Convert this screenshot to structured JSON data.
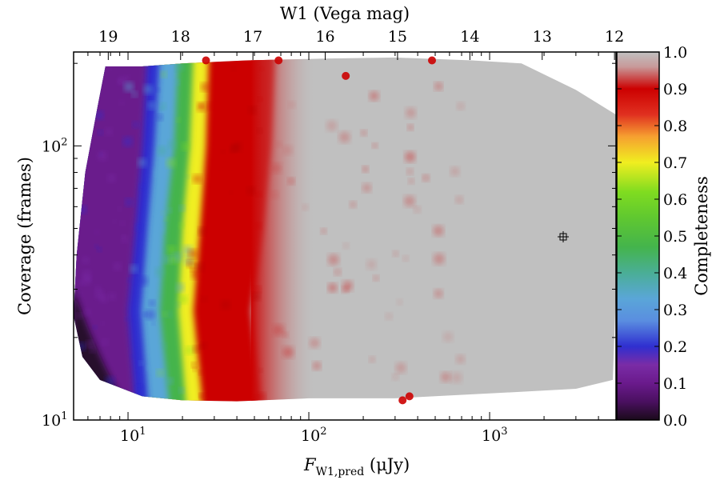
{
  "chart_data": {
    "type": "heatmap",
    "title": "",
    "x_axis": {
      "label_main": "F",
      "label_sub": "W1,pred",
      "label_unit": " (μJy)",
      "scale": "log",
      "range": [
        5,
        5000
      ],
      "major_ticks": [
        {
          "value": 10,
          "base": "10",
          "exp": "1"
        },
        {
          "value": 100,
          "base": "10",
          "exp": "2"
        },
        {
          "value": 1000,
          "base": "10",
          "exp": "3"
        }
      ]
    },
    "top_axis": {
      "label": "W1 (Vega mag)",
      "ticks": [
        {
          "value": 19,
          "label": "19"
        },
        {
          "value": 18,
          "label": "18"
        },
        {
          "value": 17,
          "label": "17"
        },
        {
          "value": 16,
          "label": "16"
        },
        {
          "value": 15,
          "label": "15"
        },
        {
          "value": 14,
          "label": "14"
        },
        {
          "value": 13,
          "label": "13"
        },
        {
          "value": 12,
          "label": "12"
        }
      ]
    },
    "y_axis": {
      "label": "Coverage (frames)",
      "scale": "log",
      "range": [
        10,
        220
      ],
      "major_ticks": [
        {
          "value": 10,
          "base": "10",
          "exp": "1"
        },
        {
          "value": 100,
          "base": "10",
          "exp": "2"
        }
      ]
    },
    "colorbar": {
      "label": "Completeness",
      "range": [
        0.0,
        1.0
      ],
      "ticks": [
        "0.0",
        "0.1",
        "0.2",
        "0.3",
        "0.4",
        "0.5",
        "0.6",
        "0.7",
        "0.8",
        "0.9",
        "1.0"
      ],
      "colors": [
        "#1a0a1a",
        "#6a1a8c",
        "#7a2ca6",
        "#2f2fd0",
        "#5aa6d8",
        "#4aae96",
        "#44b44c",
        "#80dc20",
        "#f0ee20",
        "#f6a030",
        "#e03020",
        "#cc0000",
        "#c0c0c0"
      ]
    },
    "contours": [
      {
        "completeness": 0.1,
        "flux_at_cov": [
          [
            12,
            8.6
          ],
          [
            25,
            8.2
          ],
          [
            50,
            8.8
          ],
          [
            100,
            9.4
          ],
          [
            180,
            10.0
          ]
        ]
      },
      {
        "completeness": 0.3,
        "flux_at_cov": [
          [
            12,
            13.5
          ],
          [
            25,
            12.8
          ],
          [
            50,
            13.6
          ],
          [
            100,
            14.6
          ],
          [
            180,
            15.3
          ]
        ]
      },
      {
        "completeness": 0.5,
        "flux_at_cov": [
          [
            12,
            18.5
          ],
          [
            25,
            17.5
          ],
          [
            50,
            18.6
          ],
          [
            100,
            19.6
          ],
          [
            180,
            20.8
          ]
        ]
      },
      {
        "completeness": 0.7,
        "flux_at_cov": [
          [
            12,
            24.5
          ],
          [
            25,
            22.5
          ],
          [
            50,
            23.6
          ],
          [
            100,
            25.0
          ],
          [
            180,
            26.5
          ]
        ]
      },
      {
        "completeness": 0.9,
        "flux_at_cov": [
          [
            12,
            45
          ],
          [
            25,
            40
          ],
          [
            50,
            48
          ],
          [
            100,
            55
          ],
          [
            180,
            58
          ]
        ]
      }
    ],
    "grid": false
  }
}
